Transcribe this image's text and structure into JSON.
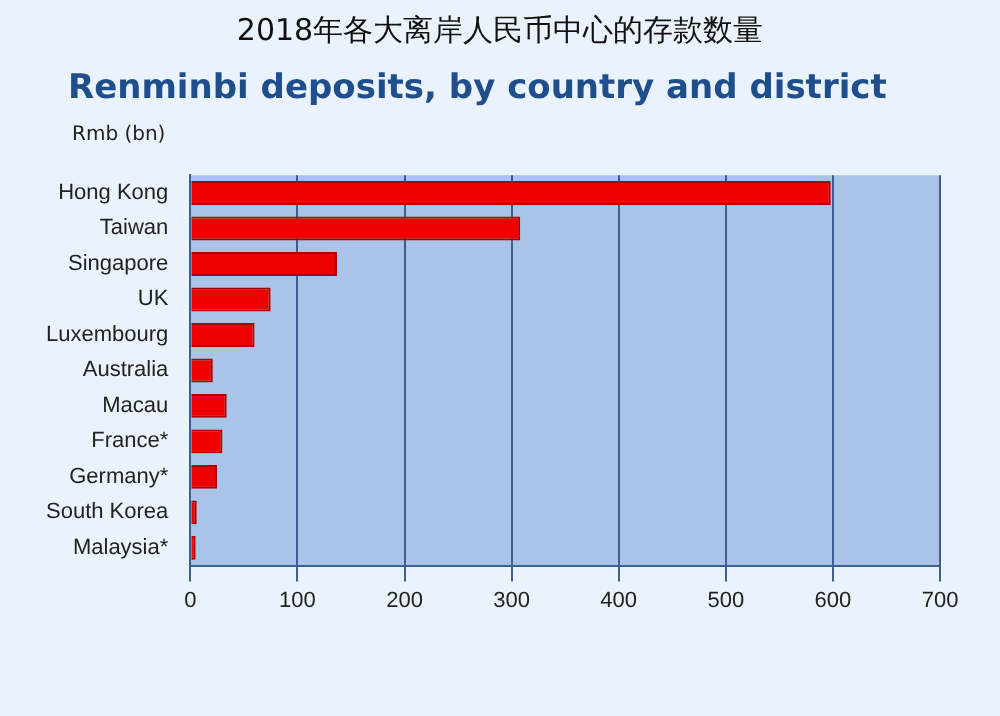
{
  "chart_data": {
    "type": "bar",
    "orientation": "horizontal",
    "title": "2018年各大离岸人民币中心的存款数量",
    "subtitle": "Renminbi deposits, by country and district",
    "ylabel": "Rmb (bn)",
    "categories": [
      "Hong Kong",
      "Taiwan",
      "Singapore",
      "UK",
      "Luxembourg",
      "Australia",
      "Macau",
      "France*",
      "Germany*",
      "South Korea",
      "Malaysia*"
    ],
    "values": [
      598,
      308,
      137,
      75,
      60,
      21,
      34,
      30,
      25,
      6,
      5
    ],
    "color": "#ee0000",
    "xlim": [
      0,
      700
    ],
    "xticks": [
      0,
      100,
      200,
      300,
      400,
      500,
      600,
      700
    ],
    "grid": "x",
    "legend": false
  }
}
